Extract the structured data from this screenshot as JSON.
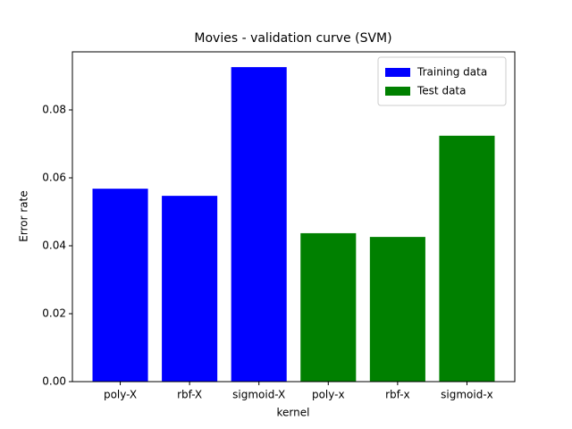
{
  "chart_data": {
    "type": "bar",
    "title": "Movies - validation curve (SVM)",
    "x_label": "kernel",
    "y_label": "Error rate",
    "categories": [
      "poly-X",
      "rbf-X",
      "sigmoid-X",
      "poly-x",
      "rbf-x",
      "sigmoid-x"
    ],
    "series": [
      {
        "name": "Training data",
        "color": "#0000ff",
        "values": [
          0.0568,
          0.0547,
          0.0926,
          null,
          null,
          null
        ]
      },
      {
        "name": "Test data",
        "color": "#008000",
        "values": [
          null,
          null,
          null,
          0.0437,
          0.0426,
          0.0724
        ]
      }
    ],
    "ylim": [
      0,
      0.0971
    ],
    "yticks": [
      {
        "value": 0,
        "label": "0.00"
      },
      0.02,
      0.04,
      0.06,
      0.08
    ],
    "grid": false,
    "legend": "upper right"
  }
}
